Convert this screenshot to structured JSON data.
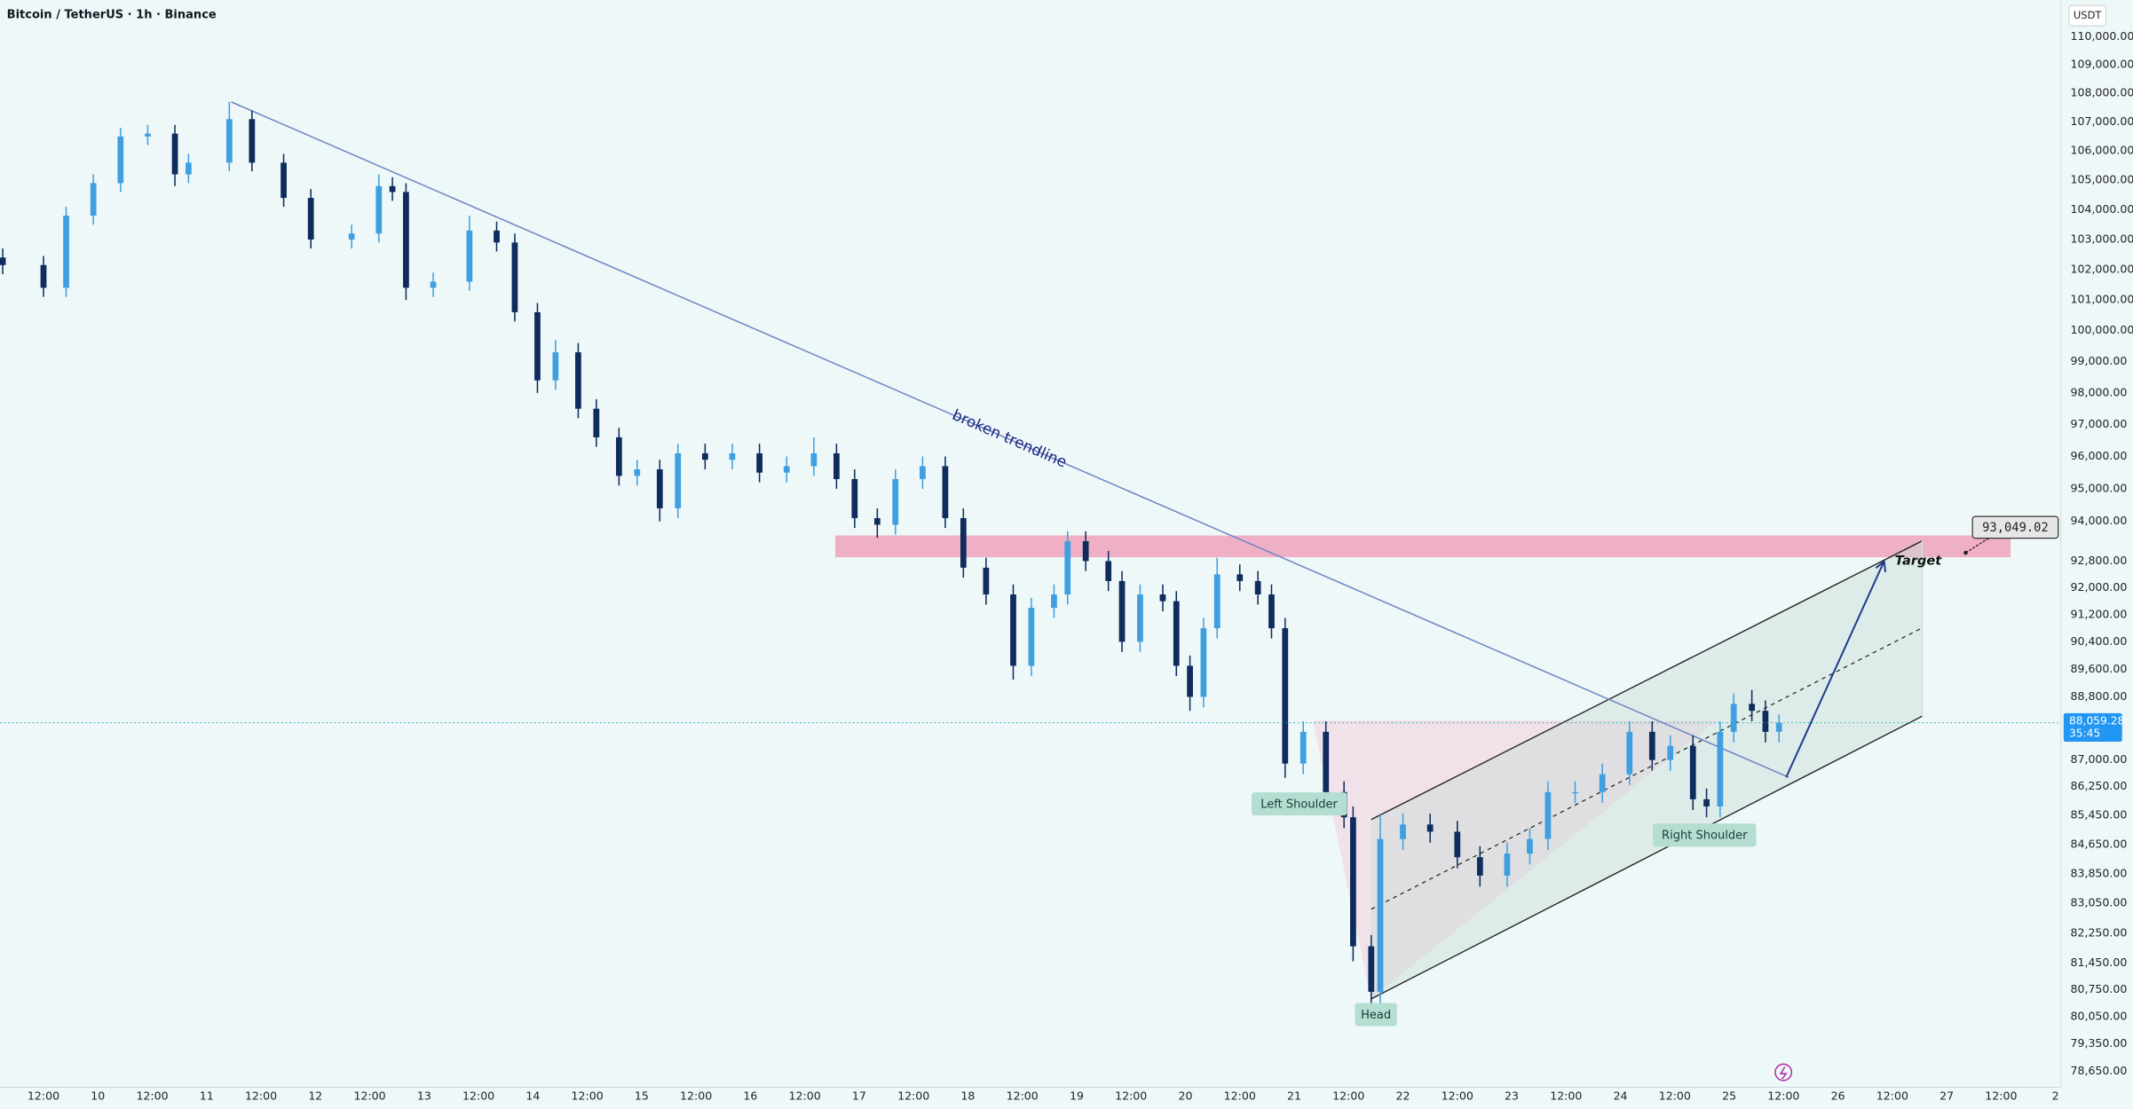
{
  "chart_data": {
    "type": "candlestick",
    "title": "Bitcoin / TetherUS · 1h · Binance",
    "y_unit": "USDT",
    "log": true,
    "up_color": "#3f9fe0",
    "down_color": "#0f2c5e",
    "xlim": [
      -21.6,
      433.2
    ],
    "ylim": [
      78240,
      111320
    ],
    "x": [
      -21,
      -12,
      -7,
      -1,
      5,
      11,
      17,
      20,
      29,
      34,
      41,
      47,
      56,
      62,
      65,
      68,
      74,
      82,
      88,
      92,
      97,
      101,
      106,
      110,
      115,
      119,
      124,
      128,
      134,
      140,
      146,
      152,
      158,
      163,
      167,
      172,
      176,
      182,
      187,
      191,
      196,
      202,
      206,
      211,
      214,
      218,
      223,
      226,
      230,
      235,
      238,
      241,
      244,
      247,
      252,
      256,
      259,
      262,
      266,
      271,
      275,
      277,
      281,
      283,
      288,
      294,
      300,
      305,
      311,
      316,
      320,
      326,
      332,
      338,
      343,
      347,
      352,
      355,
      358,
      361,
      365,
      368,
      371
    ],
    "open": [
      102400,
      102150,
      101400,
      103800,
      104900,
      106500,
      106600,
      105200,
      105600,
      107100,
      105600,
      104400,
      103000,
      103200,
      104800,
      104600,
      101400,
      101600,
      103300,
      102900,
      100600,
      98400,
      99300,
      97500,
      96600,
      95400,
      95600,
      94400,
      96100,
      95900,
      96100,
      95500,
      95700,
      96100,
      95300,
      94100,
      93900,
      95300,
      95700,
      94100,
      92600,
      91800,
      89700,
      91400,
      91800,
      93400,
      92800,
      92200,
      90400,
      91800,
      91600,
      89700,
      88800,
      90800,
      92400,
      92200,
      91800,
      90800,
      86900,
      87800,
      86100,
      85400,
      81900,
      80700,
      84800,
      85200,
      85000,
      84300,
      83800,
      84400,
      84800,
      86100,
      86100,
      86600,
      87800,
      87000,
      87400,
      85900,
      85700,
      87800,
      88600,
      88400,
      87800
    ],
    "high": [
      102700,
      102450,
      104100,
      105200,
      106800,
      106900,
      106900,
      105900,
      107700,
      107400,
      105900,
      104700,
      103500,
      105200,
      105100,
      104900,
      101900,
      103800,
      103600,
      103200,
      100900,
      99700,
      99600,
      97800,
      96900,
      95900,
      95900,
      96400,
      96400,
      96400,
      96400,
      96000,
      96600,
      96400,
      95600,
      94400,
      95600,
      96000,
      96000,
      94400,
      92900,
      92100,
      91700,
      92100,
      93700,
      93700,
      93100,
      92500,
      92100,
      92100,
      91900,
      90000,
      91100,
      92900,
      92700,
      92500,
      92100,
      91100,
      88100,
      88100,
      86400,
      85700,
      82200,
      85500,
      85500,
      85500,
      85300,
      84600,
      84700,
      85100,
      86400,
      86400,
      86900,
      88100,
      88100,
      87700,
      87700,
      86200,
      88100,
      88900,
      89000,
      88700,
      88300
    ],
    "low": [
      101850,
      101100,
      101100,
      103500,
      104600,
      106200,
      104800,
      104900,
      105300,
      105300,
      104100,
      102700,
      102700,
      102900,
      104300,
      101000,
      101100,
      101300,
      102600,
      100300,
      98000,
      98100,
      97200,
      96300,
      95100,
      95100,
      94000,
      94100,
      95600,
      95600,
      95200,
      95200,
      95400,
      95000,
      93800,
      93500,
      93600,
      95000,
      93800,
      92300,
      91500,
      89300,
      89400,
      91100,
      91500,
      92500,
      91900,
      90100,
      90100,
      91300,
      89400,
      88400,
      88500,
      90500,
      91900,
      91500,
      90500,
      86500,
      86600,
      85800,
      85100,
      81500,
      80250,
      80400,
      84500,
      84700,
      84000,
      83500,
      83500,
      84100,
      84500,
      85800,
      85800,
      86300,
      86700,
      86700,
      85600,
      85400,
      85400,
      87500,
      88100,
      87500,
      87500
    ],
    "close": [
      102150,
      101400,
      103800,
      104900,
      106500,
      106600,
      105200,
      105600,
      107100,
      105600,
      104400,
      103000,
      103200,
      104800,
      104600,
      101400,
      101600,
      103300,
      102900,
      100600,
      98400,
      99300,
      97500,
      96600,
      95400,
      95600,
      94400,
      96100,
      95900,
      96100,
      95500,
      95700,
      96100,
      95300,
      94100,
      93900,
      95300,
      95700,
      94100,
      92600,
      91800,
      89700,
      91400,
      91800,
      93400,
      92800,
      92200,
      90400,
      91800,
      91600,
      89700,
      88800,
      90800,
      92400,
      92200,
      91800,
      90800,
      86900,
      87800,
      86100,
      85400,
      81900,
      80700,
      84800,
      85200,
      85000,
      84300,
      83800,
      84400,
      84800,
      86100,
      86100,
      86600,
      87800,
      87000,
      87400,
      85900,
      85700,
      87800,
      88600,
      88400,
      87800,
      88059.28
    ],
    "xticks": [
      {
        "value": -12,
        "label": "12:00"
      },
      {
        "value": 0,
        "label": "10"
      },
      {
        "value": 12,
        "label": "12:00"
      },
      {
        "value": 24,
        "label": "11"
      },
      {
        "value": 36,
        "label": "12:00"
      },
      {
        "value": 48,
        "label": "12"
      },
      {
        "value": 60,
        "label": "12:00"
      },
      {
        "value": 72,
        "label": "13"
      },
      {
        "value": 84,
        "label": "12:00"
      },
      {
        "value": 96,
        "label": "14"
      },
      {
        "value": 108,
        "label": "12:00"
      },
      {
        "value": 120,
        "label": "15"
      },
      {
        "value": 132,
        "label": "12:00"
      },
      {
        "value": 144,
        "label": "16"
      },
      {
        "value": 156,
        "label": "12:00"
      },
      {
        "value": 168,
        "label": "17"
      },
      {
        "value": 180,
        "label": "12:00"
      },
      {
        "value": 192,
        "label": "18"
      },
      {
        "value": 204,
        "label": "12:00"
      },
      {
        "value": 216,
        "label": "19"
      },
      {
        "value": 228,
        "label": "12:00"
      },
      {
        "value": 240,
        "label": "20"
      },
      {
        "value": 252,
        "label": "12:00"
      },
      {
        "value": 264,
        "label": "21"
      },
      {
        "value": 276,
        "label": "12:00"
      },
      {
        "value": 288,
        "label": "22"
      },
      {
        "value": 300,
        "label": "12:00"
      },
      {
        "value": 312,
        "label": "23"
      },
      {
        "value": 324,
        "label": "12:00"
      },
      {
        "value": 336,
        "label": "24"
      },
      {
        "value": 348,
        "label": "12:00"
      },
      {
        "value": 360,
        "label": "25"
      },
      {
        "value": 372,
        "label": "12:00"
      },
      {
        "value": 384,
        "label": "26"
      },
      {
        "value": 396,
        "label": "12:00"
      },
      {
        "value": 408,
        "label": "27"
      },
      {
        "value": 420,
        "label": "12:00"
      },
      {
        "value": 432,
        "label": "2"
      }
    ],
    "yticks": [
      {
        "value": 110000,
        "label": "110,000.00"
      },
      {
        "value": 109000,
        "label": "109,000.00"
      },
      {
        "value": 108000,
        "label": "108,000.00"
      },
      {
        "value": 107000,
        "label": "107,000.00"
      },
      {
        "value": 106000,
        "label": "106,000.00"
      },
      {
        "value": 105000,
        "label": "105,000.00"
      },
      {
        "value": 104000,
        "label": "104,000.00"
      },
      {
        "value": 103000,
        "label": "103,000.00"
      },
      {
        "value": 102000,
        "label": "102,000.00"
      },
      {
        "value": 101000,
        "label": "101,000.00"
      },
      {
        "value": 100000,
        "label": "100,000.00"
      },
      {
        "value": 99000,
        "label": "99,000.00"
      },
      {
        "value": 98000,
        "label": "98,000.00"
      },
      {
        "value": 97000,
        "label": "97,000.00"
      },
      {
        "value": 96000,
        "label": "96,000.00"
      },
      {
        "value": 95000,
        "label": "95,000.00"
      },
      {
        "value": 94000,
        "label": "94,000.00"
      },
      {
        "value": 92800,
        "label": "92,800.00"
      },
      {
        "value": 92000,
        "label": "92,000.00"
      },
      {
        "value": 91200,
        "label": "91,200.00"
      },
      {
        "value": 90400,
        "label": "90,400.00"
      },
      {
        "value": 89600,
        "label": "89,600.00"
      },
      {
        "value": 88800,
        "label": "88,800.00"
      },
      {
        "value": 87000,
        "label": "87,000.00"
      },
      {
        "value": 86250,
        "label": "86,250.00"
      },
      {
        "value": 85450,
        "label": "85,450.00"
      },
      {
        "value": 84650,
        "label": "84,650.00"
      },
      {
        "value": 83850,
        "label": "83,850.00"
      },
      {
        "value": 83050,
        "label": "83,050.00"
      },
      {
        "value": 82250,
        "label": "82,250.00"
      },
      {
        "value": 81450,
        "label": "81,450.00"
      },
      {
        "value": 80750,
        "label": "80,750.00"
      },
      {
        "value": 80050,
        "label": "80,050.00"
      },
      {
        "value": 79350,
        "label": "79,350.00"
      },
      {
        "value": 78650,
        "label": "78,650.00"
      }
    ],
    "last_price": {
      "value": 88059.28,
      "label": "88,059.28"
    },
    "countdown": "35:45",
    "target_price": {
      "value": 93049.02,
      "label": "93,049.02"
    },
    "annotations": {
      "trendline": "broken trendline",
      "left_shoulder": "Left Shoulder",
      "head": "Head",
      "right_shoulder": "Right Shoulder",
      "target": "Target"
    }
  }
}
